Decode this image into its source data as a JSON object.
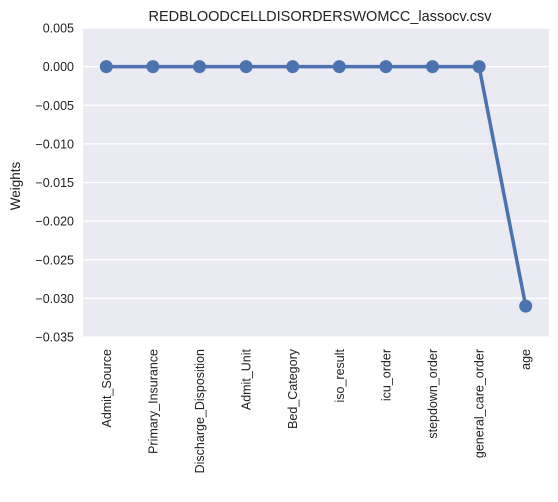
{
  "chart_data": {
    "type": "line",
    "title": "REDBLOODCELLDISORDERSWOMCC_lassocv.csv",
    "xlabel": "",
    "ylabel": "Weights",
    "categories": [
      "Admit_Source",
      "Primary_Insurance",
      "Discharge_Disposition",
      "Admit_Unit",
      "Bed_Category",
      "iso_result",
      "icu_order",
      "stepdown_order",
      "general_care_order",
      "age"
    ],
    "values": [
      0,
      0,
      0,
      0,
      0,
      0,
      0,
      0,
      0,
      -0.031
    ],
    "ylim": [
      -0.035,
      0.005
    ],
    "yticks": [
      "0.005",
      "0.000",
      "−0.005",
      "−0.010",
      "−0.015",
      "−0.020",
      "−0.025",
      "−0.030",
      "−0.035"
    ],
    "grid": true,
    "line_color": "#4c72b0",
    "background_color": "#eaeaf2",
    "grid_color": "#ffffff"
  }
}
